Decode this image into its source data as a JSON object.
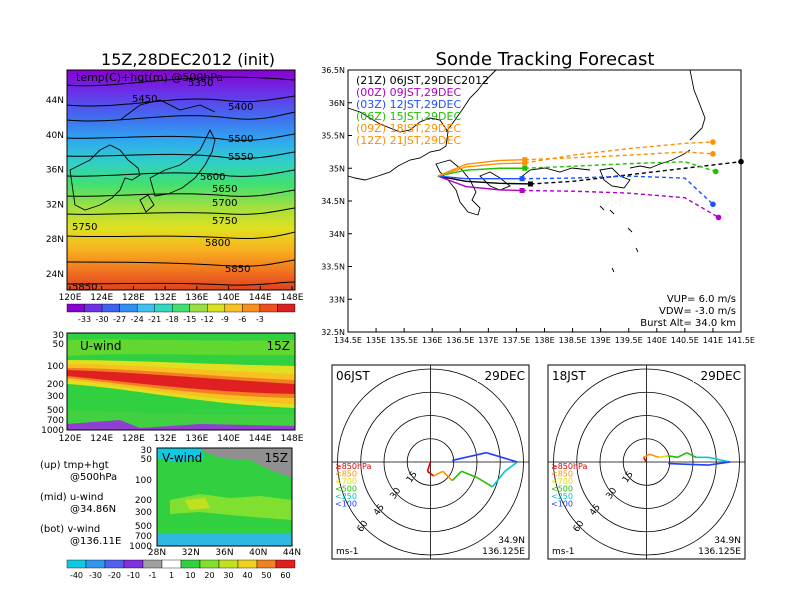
{
  "main_title": "Sonde Tracking Forecast",
  "map_panel": {
    "title": "15Z,28DEC2012 (init)",
    "label": "temp(C)+hgt(m) @500hPa",
    "x_ticks": [
      "120E",
      "124E",
      "128E",
      "132E",
      "136E",
      "140E",
      "144E",
      "148E"
    ],
    "y_ticks": [
      "24N",
      "28N",
      "32N",
      "36N",
      "40N",
      "44N"
    ],
    "contours": [
      "5450",
      "5400",
      "5500",
      "5550",
      "5600",
      "5650",
      "5700",
      "5750",
      "5800",
      "5850",
      "5750",
      "5850",
      "5350"
    ],
    "colorbar": [
      "-33",
      "-30",
      "-27",
      "-24",
      "-21",
      "-18",
      "-15",
      "-12",
      "-9",
      "-6",
      "-3"
    ]
  },
  "uwind_panel": {
    "label": "U-wind",
    "time": "15Z",
    "y_ticks": [
      "30",
      "50",
      "100",
      "200",
      "300",
      "500",
      "700",
      "1000"
    ],
    "x_ticks": [
      "120E",
      "124E",
      "128E",
      "132E",
      "136E",
      "140E",
      "144E",
      "148E"
    ]
  },
  "vwind_panel": {
    "label": "V-wind",
    "time": "15Z",
    "y_ticks": [
      "30",
      "50",
      "100",
      "200",
      "300",
      "500",
      "700",
      "1000"
    ],
    "x_ticks": [
      "28N",
      "32N",
      "36N",
      "40N",
      "44N"
    ]
  },
  "legend_notes": [
    {
      "line1": "(up) tmp+hgt",
      "line2": "@500hPa"
    },
    {
      "line1": "(mid) u-wind",
      "line2": "@34.86N"
    },
    {
      "line1": "(bot) v-wind",
      "line2": "@136.11E"
    }
  ],
  "wind_colorbar": [
    "-40",
    "-30",
    "-20",
    "-10",
    "-1",
    "1",
    "10",
    "20",
    "30",
    "40",
    "50",
    "60"
  ],
  "track_panel": {
    "x_ticks": [
      "134.5E",
      "135E",
      "135.5E",
      "136E",
      "136.5E",
      "137E",
      "137.5E",
      "138E",
      "138.5E",
      "139E",
      "139.5E",
      "140E",
      "140.5E",
      "141E",
      "141.5E"
    ],
    "y_ticks": [
      "32.5N",
      "33N",
      "33.5N",
      "34N",
      "34.5N",
      "35N",
      "35.5N",
      "36N",
      "36.5N"
    ],
    "params": [
      "VUP= 6.0 m/s",
      "VDW= -3.0 m/s",
      "Burst Alt= 34.0 km"
    ]
  },
  "hodo_panels": [
    {
      "time": "06JST",
      "date": "29DEC",
      "lat": "34.9N",
      "lon": "136.125E",
      "unit": "ms-1"
    },
    {
      "time": "18JST",
      "date": "29DEC",
      "lat": "34.9N",
      "lon": "136.125E",
      "unit": "ms-1"
    }
  ],
  "hodo_ring_labels": [
    "15",
    "30",
    "45",
    "60"
  ],
  "hodo_legend": [
    {
      "label": "≥850hPa",
      "color": "#e00000"
    },
    {
      "label": "<850",
      "color": "#ff9000"
    },
    {
      "label": "<700",
      "color": "#e0e000"
    },
    {
      "label": "<500",
      "color": "#20c000"
    },
    {
      "label": "<250",
      "color": "#00c8c8"
    },
    {
      "label": "<100",
      "color": "#2040ff"
    }
  ],
  "chart_data": {
    "type": "line",
    "title": "Sonde Tracking Forecast",
    "xlim": [
      134.5,
      141.5
    ],
    "ylim": [
      32.5,
      36.5
    ],
    "xlabel": "",
    "ylabel": "",
    "grid": false,
    "legend": "top-left",
    "series": [
      {
        "name": "(21Z) 06JST,29DEC2012",
        "color": "#000000",
        "ascent": [
          [
            136.1,
            34.88
          ],
          [
            136.6,
            34.8
          ],
          [
            137.2,
            34.77
          ],
          [
            137.75,
            34.76
          ]
        ],
        "descent": [
          [
            137.75,
            34.76
          ],
          [
            138.5,
            34.8
          ],
          [
            139.5,
            34.9
          ],
          [
            140.5,
            35.0
          ],
          [
            141.5,
            35.1
          ]
        ]
      },
      {
        "name": "(00Z) 09JST,29DEC",
        "color": "#b000c8",
        "ascent": [
          [
            136.1,
            34.88
          ],
          [
            136.6,
            34.72
          ],
          [
            137.2,
            34.67
          ],
          [
            137.6,
            34.66
          ]
        ],
        "descent": [
          [
            137.6,
            34.66
          ],
          [
            138.5,
            34.65
          ],
          [
            139.5,
            34.62
          ],
          [
            140.5,
            34.55
          ],
          [
            141.1,
            34.25
          ]
        ]
      },
      {
        "name": "(03Z) 12JST,29DEC",
        "color": "#2050ff",
        "ascent": [
          [
            136.1,
            34.88
          ],
          [
            136.6,
            34.84
          ],
          [
            137.2,
            34.84
          ],
          [
            137.6,
            34.84
          ]
        ],
        "descent": [
          [
            137.6,
            34.84
          ],
          [
            138.5,
            34.85
          ],
          [
            139.5,
            34.88
          ],
          [
            140.5,
            34.85
          ],
          [
            141.0,
            34.45
          ]
        ]
      },
      {
        "name": "(06Z) 15JST,29DEC",
        "color": "#20c000",
        "ascent": [
          [
            136.1,
            34.88
          ],
          [
            136.6,
            34.97
          ],
          [
            137.2,
            35.0
          ],
          [
            137.65,
            35.0
          ]
        ],
        "descent": [
          [
            137.65,
            35.0
          ],
          [
            138.5,
            35.03
          ],
          [
            139.5,
            35.07
          ],
          [
            140.5,
            35.1
          ],
          [
            141.05,
            34.95
          ]
        ]
      },
      {
        "name": "(09Z) 18JST,29DEC",
        "color": "#ff9000",
        "ascent": [
          [
            136.1,
            34.88
          ],
          [
            136.6,
            35.06
          ],
          [
            137.2,
            35.12
          ],
          [
            137.65,
            35.13
          ]
        ],
        "descent": [
          [
            137.65,
            35.13
          ],
          [
            138.5,
            35.16
          ],
          [
            139.5,
            35.2
          ],
          [
            140.5,
            35.25
          ],
          [
            141.0,
            35.22
          ]
        ]
      },
      {
        "name": "(12Z) 21JST,29DEC",
        "color": "#ff9000",
        "ascent": [
          [
            136.1,
            34.88
          ],
          [
            136.6,
            35.02
          ],
          [
            137.2,
            35.07
          ],
          [
            137.65,
            35.08
          ]
        ],
        "descent": [
          [
            137.65,
            35.08
          ],
          [
            138.5,
            35.2
          ],
          [
            139.5,
            35.3
          ],
          [
            140.5,
            35.38
          ],
          [
            141.0,
            35.4
          ]
        ]
      }
    ]
  },
  "colors": {
    "map_scale": [
      "#8a00d0",
      "#7030e8",
      "#4060f0",
      "#3090f8",
      "#40c0f0",
      "#30d8c0",
      "#40e070",
      "#98e040",
      "#d8e020",
      "#f8c020",
      "#f89020",
      "#f05020",
      "#d82020"
    ],
    "wind_scale": [
      "#10c8e0",
      "#3098f0",
      "#5060f0",
      "#8030e0",
      "#a0a0a0",
      "#ffffff",
      "#30d040",
      "#80e030",
      "#c0e020",
      "#f0d020",
      "#f08020",
      "#e02020"
    ]
  }
}
